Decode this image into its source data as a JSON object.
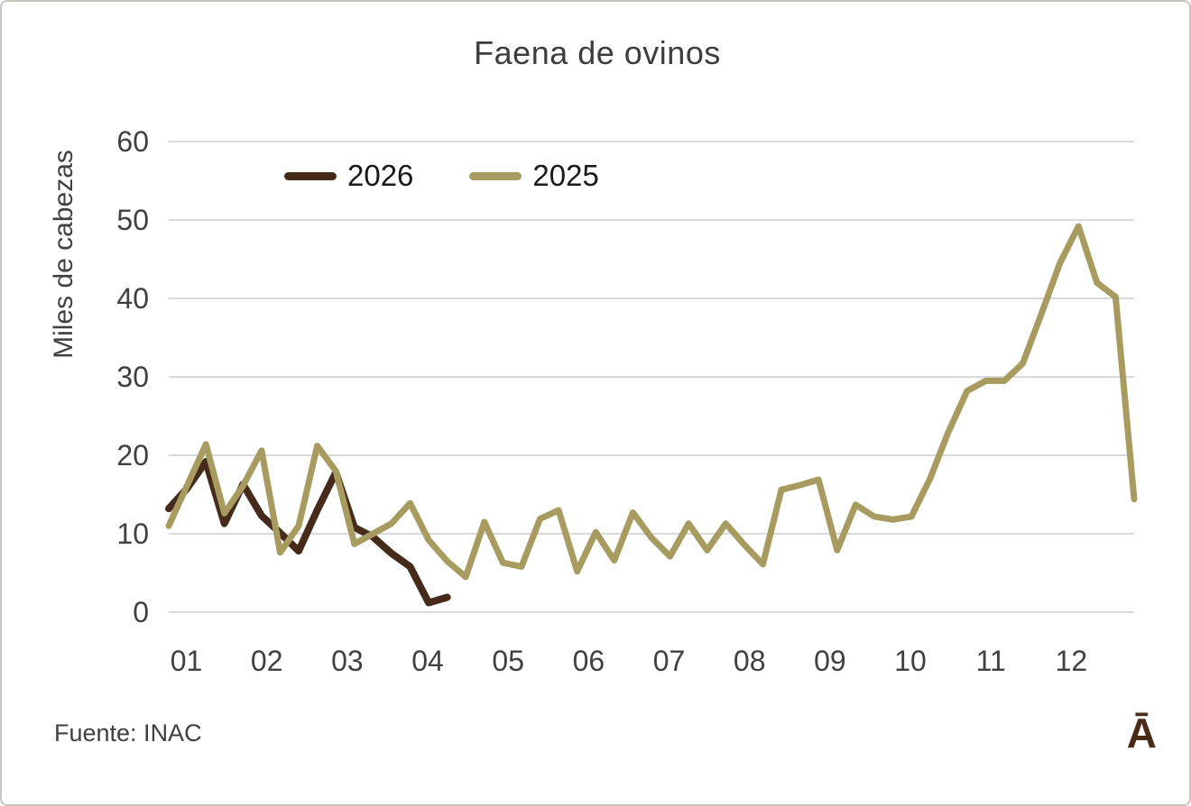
{
  "page": {
    "title": "Faena de ovinos",
    "source": "Fuente: INAC",
    "logo_glyph": "Ā"
  },
  "colors": {
    "series_2026": "#462B1A",
    "series_2025": "#A89B5F",
    "grid": "#D9D9D9",
    "axis_text": "#404040",
    "title_text": "#3D3D3D",
    "logo": "#4A2B17"
  },
  "chart_data": {
    "type": "line",
    "title": "Faena de ovinos",
    "xlabel": "",
    "ylabel": "Miles de cabezas",
    "x_unit": "week of year",
    "x_tick_labels": [
      "01",
      "02",
      "03",
      "04",
      "05",
      "06",
      "07",
      "08",
      "09",
      "10",
      "11",
      "12"
    ],
    "y_ticks": [
      0,
      10,
      20,
      30,
      40,
      50,
      60
    ],
    "ylim": [
      0,
      60
    ],
    "weeks_total": 53,
    "grid": "horizontal",
    "legend_position": "top-left-inside",
    "series": [
      {
        "name": "2026",
        "color": "#462B1A",
        "stroke_width": 8,
        "start_week": 1,
        "values": [
          13.2,
          15.8,
          19.2,
          11.3,
          16.3,
          12.3,
          10.1,
          7.8,
          13.0,
          17.8,
          10.8,
          9.6,
          7.5,
          5.8,
          1.2,
          1.9
        ]
      },
      {
        "name": "2025",
        "color": "#A89B5F",
        "stroke_width": 7,
        "start_week": 1,
        "values": [
          11.0,
          16.2,
          21.4,
          12.6,
          16.1,
          20.6,
          7.6,
          11.0,
          21.2,
          18.0,
          8.7,
          10.0,
          11.3,
          13.9,
          9.2,
          6.5,
          4.5,
          11.5,
          6.3,
          5.8,
          11.9,
          13.0,
          5.2,
          10.2,
          6.6,
          12.7,
          9.5,
          7.1,
          11.3,
          7.9,
          11.3,
          8.6,
          6.1,
          15.6,
          16.2,
          16.9,
          7.9,
          13.7,
          12.2,
          11.8,
          12.2,
          17.0,
          23.0,
          28.2,
          29.5,
          29.5,
          31.7,
          38.0,
          44.5,
          49.2,
          42.0,
          40.2,
          14.4
        ]
      }
    ]
  }
}
